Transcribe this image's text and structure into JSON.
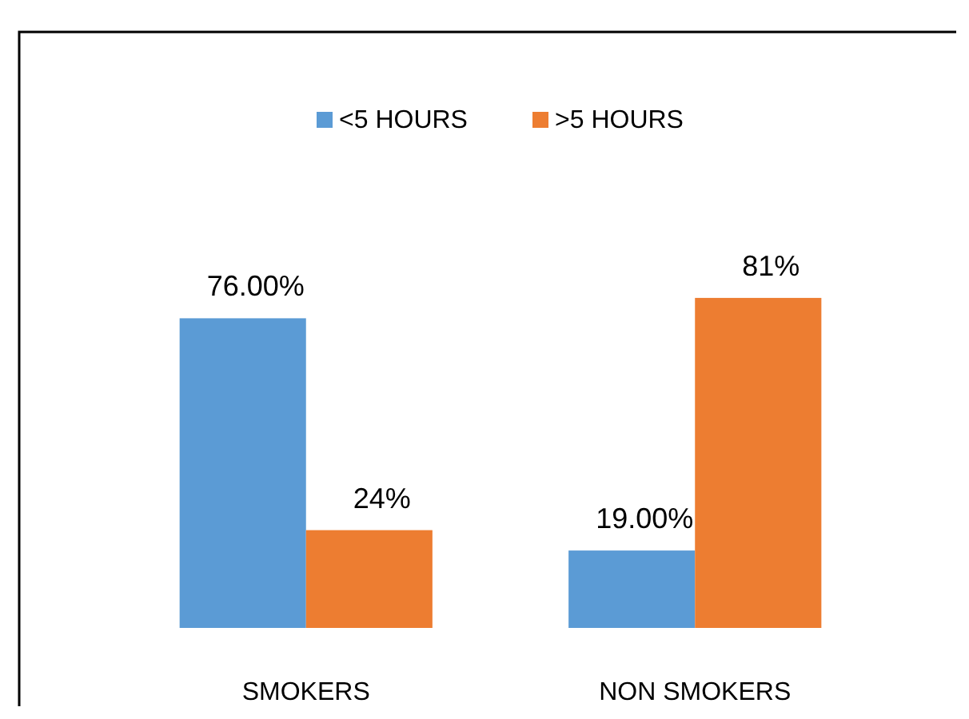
{
  "chart_data": {
    "type": "bar",
    "categories": [
      "SMOKERS",
      "NON SMOKERS"
    ],
    "series": [
      {
        "name": "<5 HOURS",
        "color": "#5b9bd5",
        "values": [
          76,
          19
        ],
        "value_labels": [
          "76.00%",
          "19.00%"
        ]
      },
      {
        "name": ">5 HOURS",
        "color": "#ed7d31",
        "values": [
          24,
          81
        ],
        "value_labels": [
          "24%",
          "81%"
        ]
      }
    ],
    "legend": "top"
  }
}
